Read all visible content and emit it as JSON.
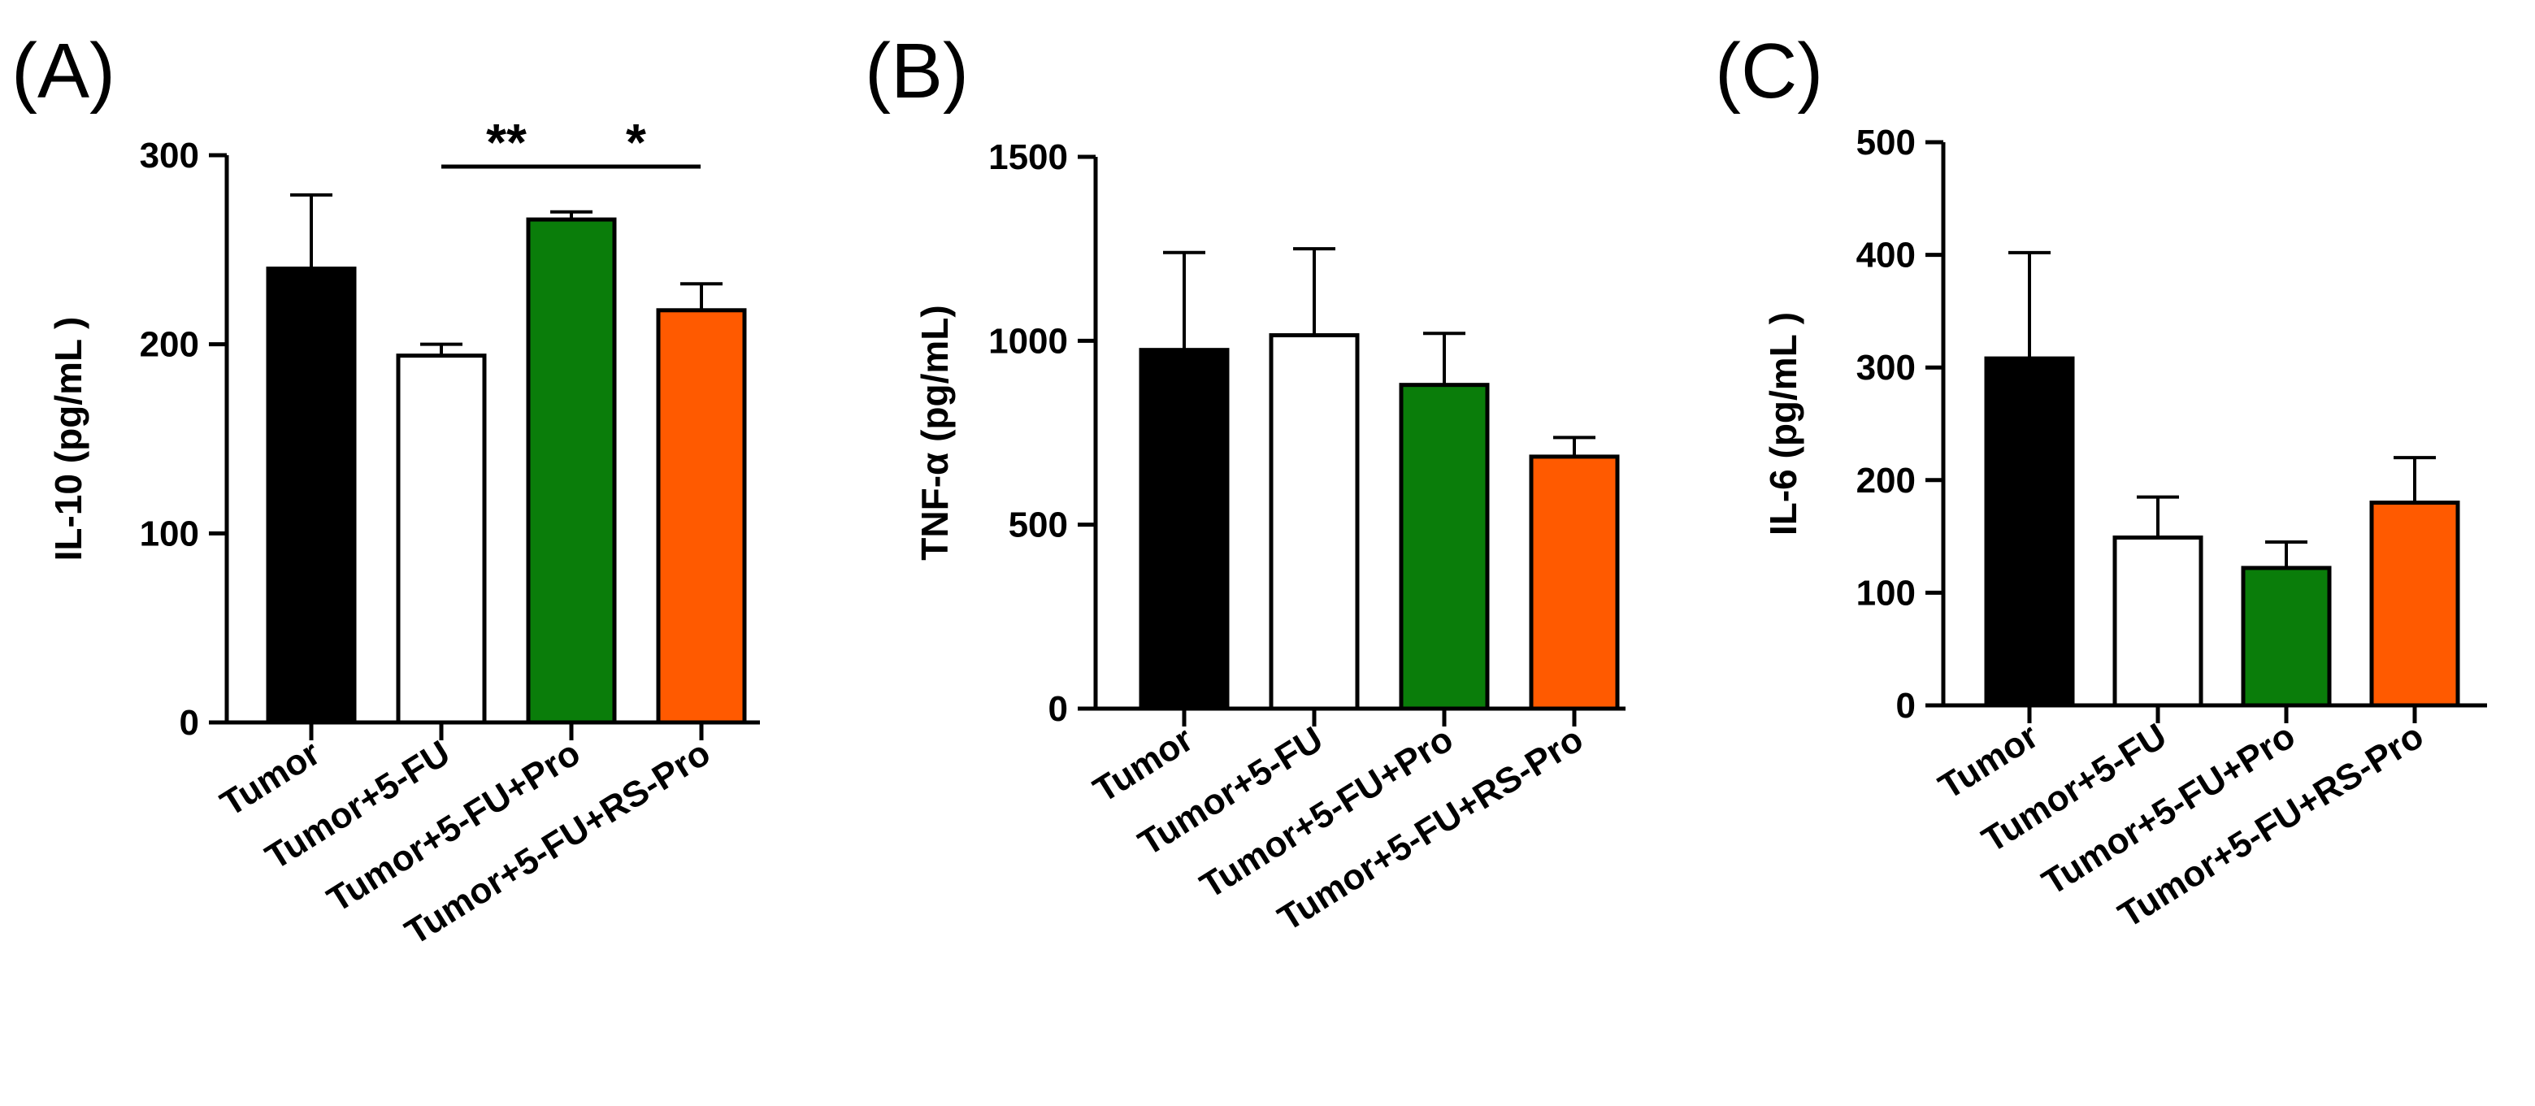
{
  "chart_data": [
    {
      "type": "bar",
      "panel": "(A)",
      "ylabel": "IL-10 (pg/mL )",
      "xlabel": "",
      "ylim": [
        0,
        300
      ],
      "yticks": [
        "0",
        "100",
        "200",
        "300"
      ],
      "categories": [
        "Tumor",
        "Tumor+5-FU",
        "Tumor+5-FU+Pro",
        "Tumor+5-FU+RS-Pro"
      ],
      "values": [
        240,
        194,
        266,
        218
      ],
      "errors": [
        39,
        6,
        4,
        14
      ],
      "colors": [
        "#000000",
        "#ffffff",
        "#0a7d0a",
        "#ff5a00"
      ],
      "significance": [
        {
          "from": 1,
          "to": 2,
          "label": "**"
        },
        {
          "from": 2,
          "to": 3,
          "label": "*"
        }
      ]
    },
    {
      "type": "bar",
      "panel": "(B)",
      "ylabel": "TNF-α (pg/mL)",
      "xlabel": "",
      "ylim": [
        0,
        1500
      ],
      "yticks": [
        "0",
        "500",
        "1000",
        "1500"
      ],
      "categories": [
        "Tumor",
        "Tumor+5-FU",
        "Tumor+5-FU+Pro",
        "Tumor+5-FU+RS-Pro"
      ],
      "values": [
        975,
        1015,
        880,
        685
      ],
      "errors": [
        265,
        235,
        140,
        52
      ],
      "colors": [
        "#000000",
        "#ffffff",
        "#0a7d0a",
        "#ff5a00"
      ],
      "significance": []
    },
    {
      "type": "bar",
      "panel": "(C)",
      "ylabel": "IL-6 (pg/mL )",
      "xlabel": "",
      "ylim": [
        0,
        500
      ],
      "yticks": [
        "0",
        "100",
        "200",
        "300",
        "400",
        "500"
      ],
      "categories": [
        "Tumor",
        "Tumor+5-FU",
        "Tumor+5-FU+Pro",
        "Tumor+5-FU+RS-Pro"
      ],
      "values": [
        308,
        149,
        122,
        180
      ],
      "errors": [
        94,
        36,
        23,
        40
      ],
      "colors": [
        "#000000",
        "#ffffff",
        "#0a7d0a",
        "#ff5a00"
      ],
      "significance": []
    }
  ]
}
